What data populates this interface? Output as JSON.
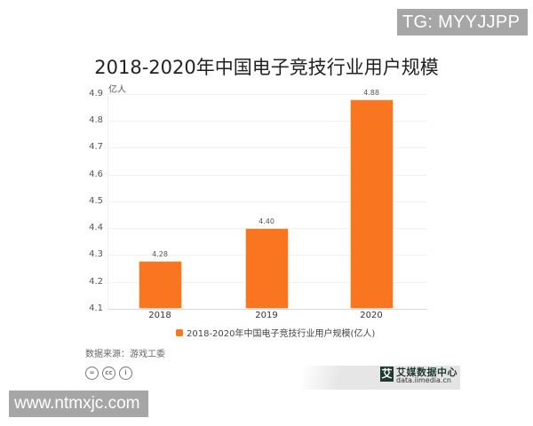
{
  "watermarks": {
    "top_right": "TG: MYYJJPP",
    "bottom_left": "www.ntmxjc.com"
  },
  "chart_data": {
    "type": "bar",
    "title": "2018-2020年中国电子竞技行业用户规模",
    "xlabel": "",
    "ylabel": "亿人",
    "categories": [
      "2018",
      "2019",
      "2020"
    ],
    "values": [
      4.28,
      4.4,
      4.88
    ],
    "value_labels": [
      "4.28",
      "4.40",
      "4.88"
    ],
    "series": [
      {
        "name": "2018-2020年中国电子竞技行业用户规模(亿人)",
        "values": [
          4.28,
          4.4,
          4.88
        ],
        "color": "#fa7520"
      }
    ],
    "ylim": [
      4.1,
      4.9
    ],
    "yticks": [
      "4.9",
      "4.8",
      "4.7",
      "4.6",
      "4.5",
      "4.4",
      "4.3",
      "4.2",
      "4.1"
    ],
    "grid": true,
    "legend_position": "bottom"
  },
  "footer": {
    "source": "数据来源：游戏工委",
    "license_icons": [
      "nd-icon",
      "cc-icon",
      "by-icon"
    ],
    "license_glyphs": [
      "=",
      "cc",
      "i"
    ],
    "brand_cn": "艾媒数据中心",
    "brand_en": "data.iimedia.cn",
    "brand_logo": "艾"
  }
}
